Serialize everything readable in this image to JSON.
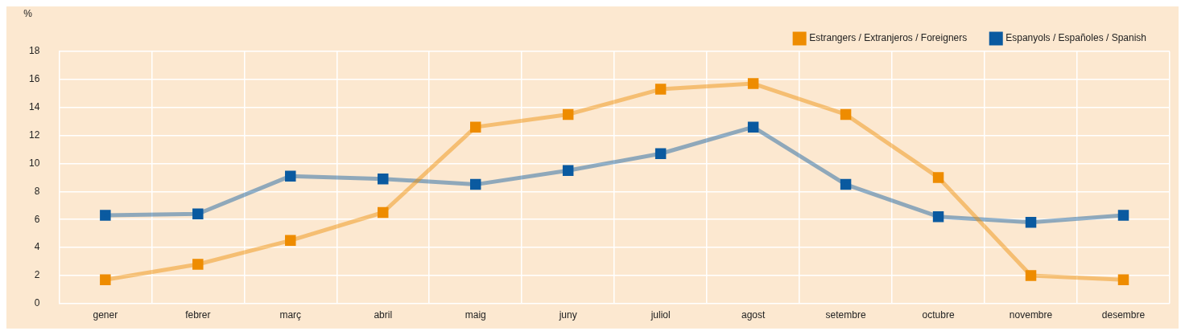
{
  "chart_data": {
    "type": "line",
    "ylabel": "%",
    "categories": [
      "gener",
      "febrer",
      "març",
      "abril",
      "maig",
      "juny",
      "juliol",
      "agost",
      "setembre",
      "octubre",
      "novembre",
      "desembre"
    ],
    "series": [
      {
        "name": "Estrangers / Extranjeros / Foreigners",
        "color": "#ee8c00",
        "values": [
          1.7,
          2.8,
          4.5,
          6.5,
          12.6,
          13.5,
          15.3,
          15.7,
          13.5,
          9.0,
          2.0,
          1.7
        ]
      },
      {
        "name": "Espanyols / Españoles / Spanish",
        "color": "#0a5aa0",
        "values": [
          6.3,
          6.4,
          9.1,
          8.9,
          8.5,
          9.5,
          10.7,
          12.6,
          8.5,
          6.2,
          5.8,
          6.3
        ]
      }
    ],
    "ylim": [
      0,
      18
    ],
    "yticks": [
      0,
      2,
      4,
      6,
      8,
      10,
      12,
      14,
      16,
      18
    ],
    "grid": true,
    "legend": "top right",
    "marker": "square",
    "line_style": "solid"
  }
}
